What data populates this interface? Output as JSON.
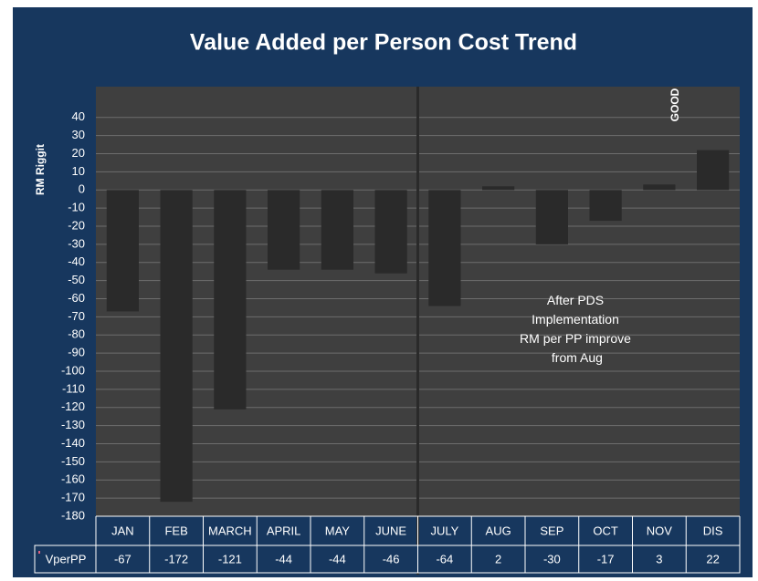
{
  "chart_data": {
    "type": "bar",
    "title": "Value Added per Person Cost Trend",
    "y_axis_label": "RM Riggit",
    "categories": [
      "JAN",
      "FEB",
      "MARCH",
      "APRIL",
      "MAY",
      "JUNE",
      "JULY",
      "AUG",
      "SEP",
      "OCT",
      "NOV",
      "DIS"
    ],
    "series": [
      {
        "name": "VperPP",
        "color": "#2a2a2a",
        "values": [
          -67,
          -172,
          -121,
          -44,
          -44,
          -46,
          -64,
          2,
          -30,
          -17,
          3,
          22
        ]
      }
    ],
    "ylim": [
      -180,
      57
    ],
    "yticks": [
      40,
      30,
      20,
      10,
      0,
      -10,
      -20,
      -30,
      -40,
      -50,
      -60,
      -70,
      -80,
      -90,
      -100,
      -110,
      -120,
      -130,
      -140,
      -150,
      -160,
      -170,
      -180
    ],
    "grid": true,
    "annotations": [
      "After PDS Implementation RM per PP improved from Aug",
      "GOOD"
    ]
  }
}
